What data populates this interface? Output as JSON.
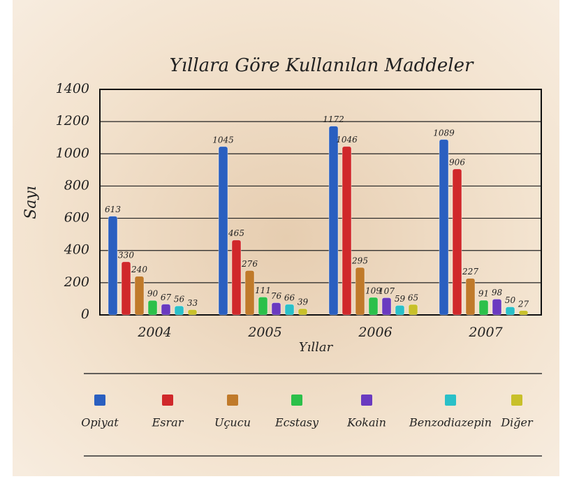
{
  "chart_data": {
    "type": "bar",
    "title": "Yıllara Göre Kullanılan Maddeler",
    "x_label": "Yıllar",
    "y_label": "Sayı",
    "categories": [
      "2004",
      "2005",
      "2006",
      "2007"
    ],
    "series": [
      {
        "name": "Opiyat",
        "color": "#2a5fc0",
        "values": [
          613,
          1045,
          1172,
          1089
        ]
      },
      {
        "name": "Esrar",
        "color": "#d0282a",
        "values": [
          330,
          465,
          1046,
          906
        ]
      },
      {
        "name": "Uçucu",
        "color": "#c07a2a",
        "values": [
          240,
          276,
          295,
          227
        ]
      },
      {
        "name": "Ecstasy",
        "color": "#2cc04a",
        "values": [
          90,
          111,
          109,
          91
        ]
      },
      {
        "name": "Kokain",
        "color": "#6a3ac0",
        "values": [
          67,
          76,
          107,
          98
        ]
      },
      {
        "name": "Benzodiazepin",
        "color": "#2ac0c8",
        "values": [
          56,
          66,
          59,
          50
        ]
      },
      {
        "name": "Diğer",
        "color": "#c8c02a",
        "values": [
          33,
          39,
          65,
          27
        ]
      }
    ],
    "ylim": [
      0,
      1400
    ],
    "yticks": [
      0,
      200,
      400,
      600,
      800,
      1000,
      1200,
      1400
    ],
    "grid": true
  }
}
